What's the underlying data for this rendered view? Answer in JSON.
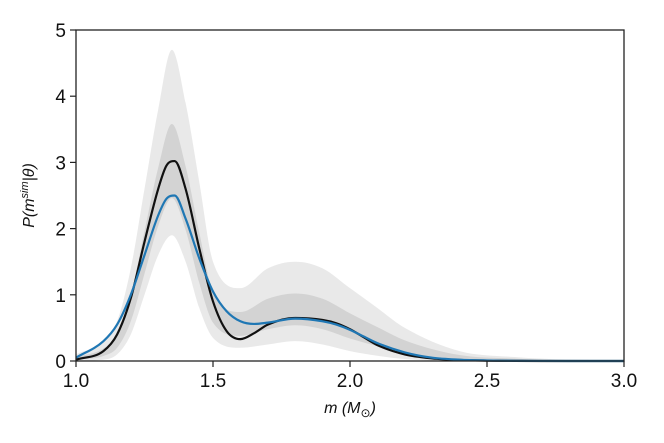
{
  "chart_data": {
    "type": "line",
    "title": "",
    "xlabel": "m (M⊙)",
    "ylabel": "P(m^sim|θ)",
    "xlim": [
      1.0,
      3.0
    ],
    "ylim": [
      0,
      5
    ],
    "xticks": [
      "1.0",
      "1.5",
      "2.0",
      "2.5",
      "3.0"
    ],
    "yticks": [
      "0",
      "1",
      "2",
      "3",
      "4",
      "5"
    ],
    "grid": false,
    "legend": "none",
    "band": {
      "x": [
        1.0,
        1.1,
        1.15,
        1.2,
        1.25,
        1.3,
        1.35,
        1.4,
        1.45,
        1.5,
        1.6,
        1.7,
        1.8,
        1.9,
        2.0,
        2.1,
        2.2,
        2.4,
        2.6,
        2.8,
        3.0
      ],
      "upper": [
        0.1,
        0.3,
        0.6,
        1.4,
        2.6,
        3.8,
        4.7,
        3.9,
        2.7,
        1.5,
        1.1,
        1.4,
        1.5,
        1.4,
        1.1,
        0.8,
        0.5,
        0.15,
        0.06,
        0.02,
        0.01
      ],
      "lower": [
        0.0,
        0.02,
        0.1,
        0.4,
        1.0,
        1.6,
        1.9,
        1.5,
        0.8,
        0.35,
        0.2,
        0.25,
        0.3,
        0.25,
        0.15,
        0.08,
        0.03,
        0.0,
        0.0,
        0.0,
        0.0
      ],
      "color": "#9a9a9a"
    },
    "series": [
      {
        "color": "#111111",
        "x": [
          1.0,
          1.1,
          1.15,
          1.2,
          1.25,
          1.3,
          1.33,
          1.36,
          1.4,
          1.45,
          1.5,
          1.55,
          1.6,
          1.65,
          1.7,
          1.8,
          1.9,
          1.95,
          2.0,
          2.05,
          2.1,
          2.2,
          2.3,
          2.4,
          2.5,
          2.6,
          2.8,
          3.0
        ],
        "values": [
          0.02,
          0.15,
          0.4,
          0.95,
          1.8,
          2.6,
          2.95,
          3.02,
          2.6,
          1.7,
          0.9,
          0.45,
          0.33,
          0.42,
          0.55,
          0.65,
          0.62,
          0.57,
          0.48,
          0.36,
          0.24,
          0.1,
          0.04,
          0.015,
          0.006,
          0.002,
          0.0,
          0.0
        ]
      },
      {
        "color": "#1f77b4",
        "x": [
          1.0,
          1.1,
          1.15,
          1.2,
          1.25,
          1.3,
          1.33,
          1.36,
          1.4,
          1.45,
          1.5,
          1.55,
          1.6,
          1.65,
          1.7,
          1.8,
          1.9,
          1.95,
          2.0,
          2.05,
          2.1,
          2.2,
          2.3,
          2.4,
          2.5,
          2.6,
          2.8,
          3.0
        ],
        "values": [
          0.05,
          0.3,
          0.55,
          1.0,
          1.6,
          2.2,
          2.45,
          2.5,
          2.15,
          1.55,
          1.05,
          0.75,
          0.6,
          0.56,
          0.58,
          0.64,
          0.6,
          0.55,
          0.47,
          0.37,
          0.27,
          0.13,
          0.05,
          0.02,
          0.008,
          0.003,
          0.0,
          0.0
        ]
      }
    ]
  }
}
